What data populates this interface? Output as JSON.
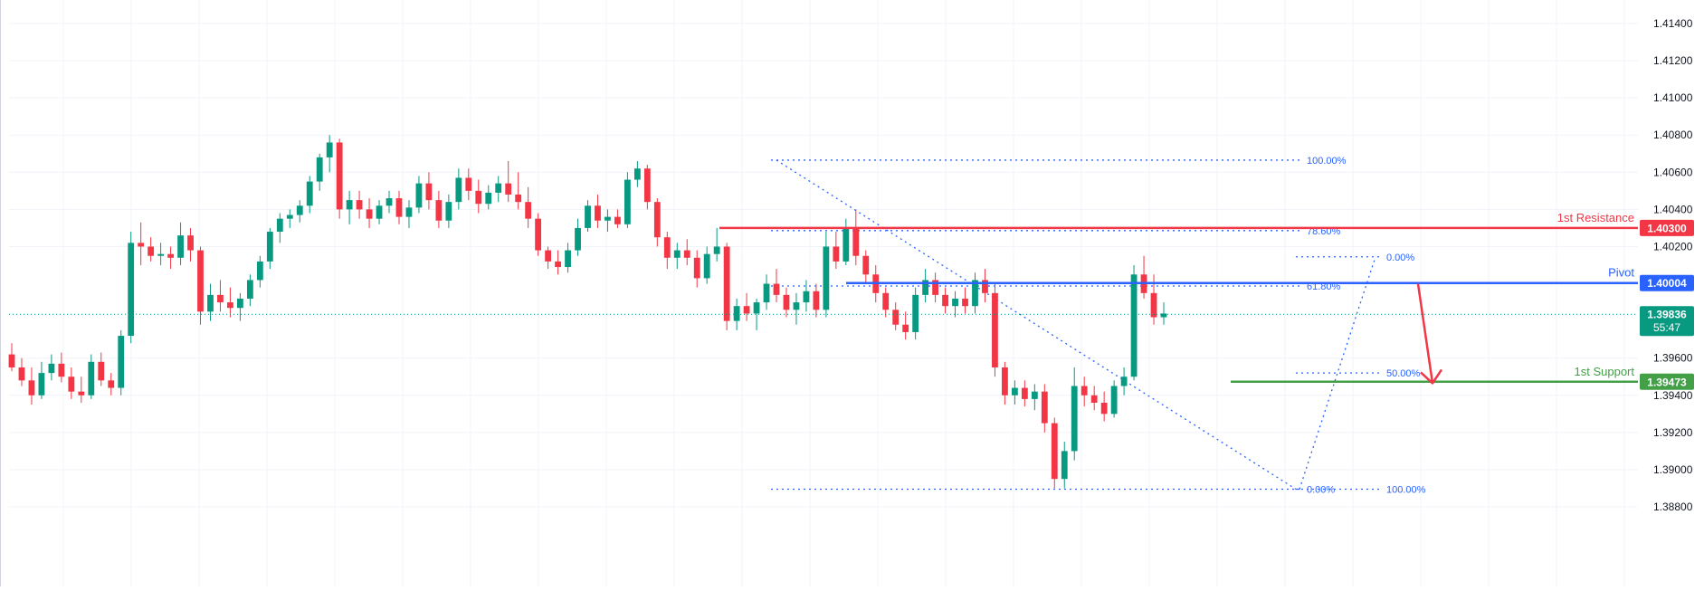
{
  "chart_data": {
    "type": "candlestick",
    "title": "",
    "xlabel": "",
    "ylabel": "",
    "ylim": [
      1.3868,
      1.415
    ],
    "grid": true,
    "y_ticks": [
      "1.41400",
      "1.41200",
      "1.41000",
      "1.40800",
      "1.40600",
      "1.40400",
      "1.40200",
      "1.39600",
      "1.39400",
      "1.39200",
      "1.39000",
      "1.38800"
    ],
    "colors": {
      "up": "#089981",
      "down": "#f23645",
      "fib": "#2962ff",
      "resistance": "#f23645",
      "pivot": "#2962ff",
      "support": "#43a047",
      "current": "#089981",
      "arrow": "#f23645"
    },
    "levels": [
      {
        "name": "resistance",
        "label": "1st Resistance",
        "price_text": "1.40300",
        "value": 1.403
      },
      {
        "name": "pivot",
        "label": "Pivot",
        "price_text": "1.40004",
        "value": 1.40004
      },
      {
        "name": "support",
        "label": "1st Support",
        "price_text": "1.39473",
        "value": 1.39473
      }
    ],
    "current_price": {
      "value": 1.39836,
      "price_text": "1.39836",
      "countdown": "55:47"
    },
    "fib_retracement_1": {
      "high": 1.40665,
      "low": 1.38895,
      "levels": [
        {
          "label": "100.00%",
          "value": 1.40665
        },
        {
          "label": "78.60%",
          "value": 1.40286
        },
        {
          "label": "61.80%",
          "value": 1.39988
        },
        {
          "label": "0.00%",
          "value": 1.38895
        }
      ]
    },
    "fib_retracement_2": {
      "high": 1.40145,
      "low": 1.38895,
      "levels": [
        {
          "label": "0.00%",
          "value": 1.40145
        },
        {
          "label": "50.00%",
          "value": 1.3952
        },
        {
          "label": "100.00%",
          "value": 1.38895
        }
      ]
    },
    "candles": [
      [
        1.3962,
        1.3968,
        1.3953,
        1.3955
      ],
      [
        1.3955,
        1.396,
        1.3945,
        1.3948
      ],
      [
        1.3948,
        1.3955,
        1.3935,
        1.394
      ],
      [
        1.394,
        1.3958,
        1.3938,
        1.3952
      ],
      [
        1.3952,
        1.3962,
        1.3948,
        1.3957
      ],
      [
        1.3957,
        1.3963,
        1.3947,
        1.395
      ],
      [
        1.395,
        1.3955,
        1.3938,
        1.3942
      ],
      [
        1.3942,
        1.395,
        1.3936,
        1.394
      ],
      [
        1.394,
        1.3962,
        1.3938,
        1.3958
      ],
      [
        1.3958,
        1.3963,
        1.3945,
        1.3948
      ],
      [
        1.3948,
        1.3952,
        1.394,
        1.3944
      ],
      [
        1.3944,
        1.3975,
        1.394,
        1.3972
      ],
      [
        1.3972,
        1.4028,
        1.3968,
        1.4022
      ],
      [
        1.4022,
        1.4033,
        1.401,
        1.402
      ],
      [
        1.402,
        1.4025,
        1.4012,
        1.4015
      ],
      [
        1.4015,
        1.4022,
        1.401,
        1.4016
      ],
      [
        1.4016,
        1.402,
        1.4008,
        1.4014
      ],
      [
        1.4014,
        1.4033,
        1.401,
        1.4026
      ],
      [
        1.4026,
        1.403,
        1.4012,
        1.4018
      ],
      [
        1.4018,
        1.402,
        1.3978,
        1.3985
      ],
      [
        1.3985,
        1.4,
        1.398,
        1.3994
      ],
      [
        1.3994,
        1.4002,
        1.3985,
        1.399
      ],
      [
        1.399,
        1.3998,
        1.3982,
        1.3987
      ],
      [
        1.3987,
        1.3995,
        1.398,
        1.3992
      ],
      [
        1.3992,
        1.4005,
        1.3988,
        1.4002
      ],
      [
        1.4002,
        1.4015,
        1.3998,
        1.4012
      ],
      [
        1.4012,
        1.403,
        1.4008,
        1.4028
      ],
      [
        1.4028,
        1.4038,
        1.4022,
        1.4035
      ],
      [
        1.4035,
        1.404,
        1.403,
        1.4037
      ],
      [
        1.4037,
        1.4045,
        1.4033,
        1.4042
      ],
      [
        1.4042,
        1.4058,
        1.4038,
        1.4055
      ],
      [
        1.4055,
        1.407,
        1.405,
        1.4068
      ],
      [
        1.4068,
        1.408,
        1.406,
        1.4076
      ],
      [
        1.4076,
        1.4078,
        1.4035,
        1.404
      ],
      [
        1.404,
        1.405,
        1.4032,
        1.4045
      ],
      [
        1.4045,
        1.405,
        1.4035,
        1.404
      ],
      [
        1.404,
        1.4046,
        1.403,
        1.4035
      ],
      [
        1.4035,
        1.4045,
        1.4032,
        1.4042
      ],
      [
        1.4042,
        1.405,
        1.4038,
        1.4046
      ],
      [
        1.4046,
        1.405,
        1.4032,
        1.4036
      ],
      [
        1.4036,
        1.4045,
        1.403,
        1.4041
      ],
      [
        1.4041,
        1.4058,
        1.4038,
        1.4054
      ],
      [
        1.4054,
        1.406,
        1.404,
        1.4045
      ],
      [
        1.4045,
        1.405,
        1.403,
        1.4034
      ],
      [
        1.4034,
        1.4048,
        1.403,
        1.4044
      ],
      [
        1.4044,
        1.4062,
        1.404,
        1.4057
      ],
      [
        1.4057,
        1.4062,
        1.4045,
        1.405
      ],
      [
        1.405,
        1.4056,
        1.4038,
        1.4043
      ],
      [
        1.4043,
        1.4053,
        1.404,
        1.4049
      ],
      [
        1.4049,
        1.4058,
        1.4044,
        1.4054
      ],
      [
        1.4054,
        1.4066,
        1.4044,
        1.4048
      ],
      [
        1.4048,
        1.406,
        1.404,
        1.4044
      ],
      [
        1.4044,
        1.4052,
        1.403,
        1.4035
      ],
      [
        1.4035,
        1.4038,
        1.4015,
        1.4018
      ],
      [
        1.4018,
        1.402,
        1.4008,
        1.4012
      ],
      [
        1.4012,
        1.4018,
        1.4005,
        1.4009
      ],
      [
        1.4009,
        1.4022,
        1.4006,
        1.4018
      ],
      [
        1.4018,
        1.4035,
        1.4015,
        1.403
      ],
      [
        1.403,
        1.4045,
        1.4028,
        1.4042
      ],
      [
        1.4042,
        1.4048,
        1.403,
        1.4034
      ],
      [
        1.4034,
        1.404,
        1.4028,
        1.4036
      ],
      [
        1.4036,
        1.404,
        1.403,
        1.4032
      ],
      [
        1.4032,
        1.406,
        1.403,
        1.4056
      ],
      [
        1.4056,
        1.4066,
        1.4052,
        1.4062
      ],
      [
        1.4062,
        1.4064,
        1.404,
        1.4044
      ],
      [
        1.4044,
        1.4046,
        1.402,
        1.4025
      ],
      [
        1.4025,
        1.4028,
        1.4008,
        1.4014
      ],
      [
        1.4014,
        1.4022,
        1.4008,
        1.4018
      ],
      [
        1.4018,
        1.4024,
        1.401,
        1.4014
      ],
      [
        1.4014,
        1.4018,
        1.3998,
        1.4003
      ],
      [
        1.4003,
        1.402,
        1.4,
        1.4016
      ],
      [
        1.4016,
        1.403,
        1.4012,
        1.402
      ],
      [
        1.402,
        1.4022,
        1.3975,
        1.398
      ],
      [
        1.398,
        1.3992,
        1.3975,
        1.3988
      ],
      [
        1.3988,
        1.3995,
        1.398,
        1.3984
      ],
      [
        1.3984,
        1.3992,
        1.3975,
        1.399
      ],
      [
        1.399,
        1.4005,
        1.3986,
        1.4
      ],
      [
        1.4,
        1.4008,
        1.399,
        1.3994
      ],
      [
        1.3994,
        1.3998,
        1.3982,
        1.3986
      ],
      [
        1.3986,
        1.3995,
        1.3978,
        1.399
      ],
      [
        1.399,
        1.4002,
        1.3985,
        1.3996
      ],
      [
        1.3996,
        1.4,
        1.3982,
        1.3986
      ],
      [
        1.3986,
        1.4028,
        1.3982,
        1.402
      ],
      [
        1.402,
        1.4028,
        1.4008,
        1.4012
      ],
      [
        1.4012,
        1.4035,
        1.401,
        1.403
      ],
      [
        1.403,
        1.404,
        1.401,
        1.4015
      ],
      [
        1.4015,
        1.4018,
        1.4,
        1.4005
      ],
      [
        1.4005,
        1.401,
        1.399,
        1.3995
      ],
      [
        1.3995,
        1.3998,
        1.3982,
        1.3986
      ],
      [
        1.3986,
        1.399,
        1.3975,
        1.3978
      ],
      [
        1.3978,
        1.3985,
        1.397,
        1.3974
      ],
      [
        1.3974,
        1.3998,
        1.397,
        1.3994
      ],
      [
        1.3994,
        1.4008,
        1.399,
        1.4002
      ],
      [
        1.4002,
        1.4006,
        1.399,
        1.3994
      ],
      [
        1.3994,
        1.3998,
        1.3984,
        1.3988
      ],
      [
        1.3988,
        1.3996,
        1.3982,
        1.3992
      ],
      [
        1.3992,
        1.3998,
        1.3984,
        1.3988
      ],
      [
        1.3988,
        1.4006,
        1.3984,
        1.4002
      ],
      [
        1.4002,
        1.4008,
        1.399,
        1.3995
      ],
      [
        1.3995,
        1.4,
        1.395,
        1.3955
      ],
      [
        1.3955,
        1.3958,
        1.3935,
        1.394
      ],
      [
        1.394,
        1.3948,
        1.3935,
        1.3944
      ],
      [
        1.3944,
        1.3948,
        1.3934,
        1.3938
      ],
      [
        1.3938,
        1.3946,
        1.3932,
        1.3942
      ],
      [
        1.3942,
        1.3946,
        1.392,
        1.3925
      ],
      [
        1.3925,
        1.3928,
        1.389,
        1.3895
      ],
      [
        1.3895,
        1.3915,
        1.389,
        1.391
      ],
      [
        1.391,
        1.3955,
        1.3905,
        1.3945
      ],
      [
        1.3945,
        1.395,
        1.3934,
        1.394
      ],
      [
        1.394,
        1.3945,
        1.3932,
        1.3936
      ],
      [
        1.3936,
        1.3942,
        1.3926,
        1.393
      ],
      [
        1.393,
        1.3948,
        1.3928,
        1.3945
      ],
      [
        1.3945,
        1.3955,
        1.394,
        1.395
      ],
      [
        1.395,
        1.401,
        1.3948,
        1.4005
      ],
      [
        1.4005,
        1.4015,
        1.3992,
        1.3995
      ],
      [
        1.3995,
        1.4005,
        1.3978,
        1.3982
      ],
      [
        1.3982,
        1.399,
        1.3978,
        1.3984
      ]
    ]
  }
}
